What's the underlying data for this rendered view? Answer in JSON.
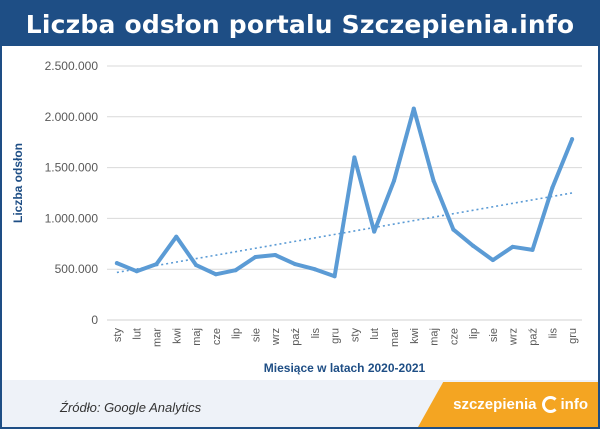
{
  "header": {
    "title": "Liczba odsłon portalu Szczepienia.info"
  },
  "footer": {
    "source": "Źródło: Google Analytics"
  },
  "logo": {
    "text_left": "szczepienia",
    "text_right": "info"
  },
  "colors": {
    "header_bg": "#1e4e85",
    "series_line": "#5b9bd5",
    "trend_line": "#5b9bd5",
    "axis_title": "#1e4e85",
    "logo_bg": "#f4a522"
  },
  "chart_data": {
    "type": "line",
    "title": "",
    "xlabel": "Miesiące w latach 2020-2021",
    "ylabel": "Liczba odsłon",
    "categories": [
      "sty",
      "lut",
      "mar",
      "kwi",
      "maj",
      "cze",
      "lip",
      "sie",
      "wrz",
      "paź",
      "lis",
      "gru",
      "sty",
      "lut",
      "mar",
      "kwi",
      "maj",
      "cze",
      "lip",
      "sie",
      "wrz",
      "paź",
      "lis",
      "gru"
    ],
    "series": [
      {
        "values": [
          560000,
          480000,
          550000,
          820000,
          540000,
          450000,
          490000,
          620000,
          640000,
          550000,
          500000,
          430000,
          1600000,
          870000,
          1370000,
          2080000,
          1370000,
          890000,
          730000,
          590000,
          720000,
          690000,
          1300000,
          1780000
        ]
      }
    ],
    "trendline": {
      "type": "linear",
      "style": "dotted"
    },
    "ylim": [
      0,
      2500000
    ],
    "yticks": [
      0,
      500000,
      1000000,
      1500000,
      2000000,
      2500000
    ],
    "ytick_labels": [
      "0",
      "500.000",
      "1.000.000",
      "1.500.000",
      "2.000.000",
      "2.500.000"
    ],
    "grid": true,
    "legend": "none"
  }
}
